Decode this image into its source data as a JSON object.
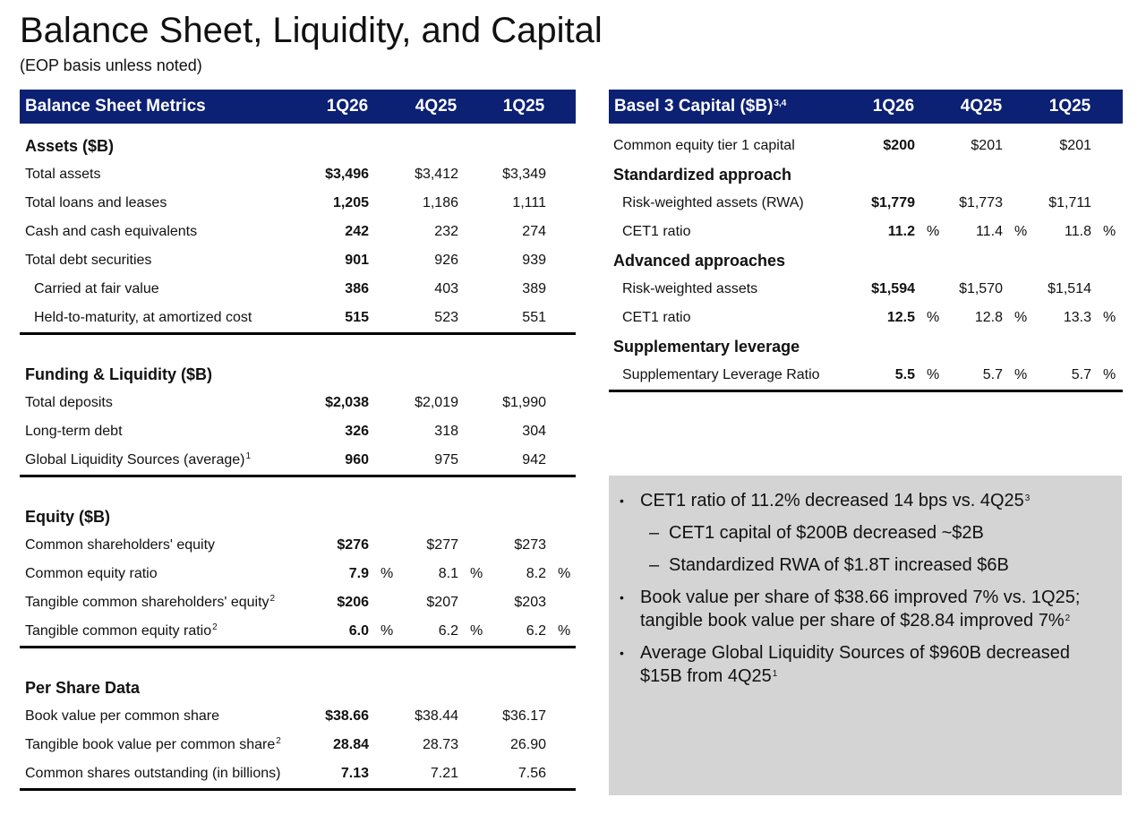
{
  "title": "Balance Sheet, Liquidity, and Capital",
  "subtitle": "(EOP basis unless noted)",
  "left_table": {
    "header": [
      "Balance Sheet Metrics",
      "1Q26",
      "4Q25",
      "1Q25"
    ],
    "sections": [
      {
        "title": "Assets ($B)",
        "rows": [
          {
            "label": "Total assets",
            "values": [
              "$3,496",
              "$3,412",
              "$3,349"
            ]
          },
          {
            "label": "Total loans and leases",
            "values": [
              "1,205",
              "1,186",
              "1,111"
            ]
          },
          {
            "label": "Cash and cash equivalents",
            "values": [
              "242",
              "232",
              "274"
            ]
          },
          {
            "label": "Total debt securities",
            "values": [
              "901",
              "926",
              "939"
            ]
          },
          {
            "label": "Carried at fair value",
            "level": 1,
            "values": [
              "386",
              "403",
              "389"
            ]
          },
          {
            "label": "Held-to-maturity, at amortized cost",
            "level": 1,
            "values": [
              "515",
              "523",
              "551"
            ]
          }
        ]
      },
      {
        "title": "Funding & Liquidity ($B)",
        "rows": [
          {
            "label": "Total deposits",
            "values": [
              "$2,038",
              "$2,019",
              "$1,990"
            ]
          },
          {
            "label": "Long-term debt",
            "values": [
              "326",
              "318",
              "304"
            ]
          },
          {
            "label": "Global Liquidity Sources (average)",
            "note": "1",
            "values": [
              "960",
              "975",
              "942"
            ]
          }
        ]
      },
      {
        "title": "Equity ($B)",
        "rows": [
          {
            "label": "Common shareholders' equity",
            "values": [
              "$276",
              "$277",
              "$273"
            ]
          },
          {
            "label": "Common equity ratio",
            "values": [
              "7.9",
              "8.1",
              "8.2"
            ],
            "unit": "%"
          },
          {
            "label": "Tangible common shareholders' equity",
            "note": "2",
            "values": [
              "$206",
              "$207",
              "$203"
            ]
          },
          {
            "label": "Tangible common equity ratio",
            "note": "2",
            "values": [
              "6.0",
              "6.2",
              "6.2"
            ],
            "unit": "%"
          }
        ]
      },
      {
        "title": "Per Share Data",
        "rows": [
          {
            "label": "Book value per common share",
            "values": [
              "$38.66",
              "$38.44",
              "$36.17"
            ]
          },
          {
            "label": "Tangible book value per common share",
            "note": "2",
            "values": [
              "28.84",
              "28.73",
              "26.90"
            ]
          },
          {
            "label": "Common shares outstanding (in billions)",
            "values": [
              "7.13",
              "7.21",
              "7.56"
            ]
          }
        ]
      }
    ]
  },
  "right_table": {
    "header": [
      "Basel 3 Capital ($B)",
      "1Q26",
      "4Q25",
      "1Q25"
    ],
    "header_note": "3,4",
    "sections": [
      {
        "rows": [
          {
            "label": "Common equity tier 1 capital",
            "values": [
              "$200",
              "$201",
              "$201"
            ]
          }
        ]
      },
      {
        "title": "Standardized approach",
        "rows": [
          {
            "label": "Risk-weighted assets (RWA)",
            "level": 1,
            "values": [
              "$1,779",
              "$1,773",
              "$1,711"
            ]
          },
          {
            "label": "CET1 ratio",
            "level": 1,
            "values": [
              "11.2",
              "11.4",
              "11.8"
            ],
            "unit": "%"
          }
        ]
      },
      {
        "title": "Advanced approaches",
        "rows": [
          {
            "label": "Risk-weighted assets",
            "level": 1,
            "values": [
              "$1,594",
              "$1,570",
              "$1,514"
            ]
          },
          {
            "label": "CET1 ratio",
            "level": 1,
            "values": [
              "12.5",
              "12.8",
              "13.3"
            ],
            "unit": "%"
          }
        ]
      },
      {
        "title": "Supplementary leverage",
        "rows": [
          {
            "label": "Supplementary Leverage Ratio",
            "level": 1,
            "values": [
              "5.5",
              "5.7",
              "5.7"
            ],
            "unit": "%"
          }
        ]
      }
    ]
  },
  "highlights": [
    {
      "text": "CET1 ratio of 11.2% decreased 14 bps vs. 4Q25",
      "note": "3",
      "sub": [
        "CET1 capital of $200B decreased ~$2B",
        "Standardized RWA of $1.8T increased $6B"
      ]
    },
    {
      "text": "Book value per share of $38.66 improved 7% vs. 1Q25; tangible book value per share of $28.84 improved 7%",
      "note": "2"
    },
    {
      "text": "Average Global Liquidity Sources of $960B decreased $15B from 4Q25",
      "note": "1"
    }
  ]
}
